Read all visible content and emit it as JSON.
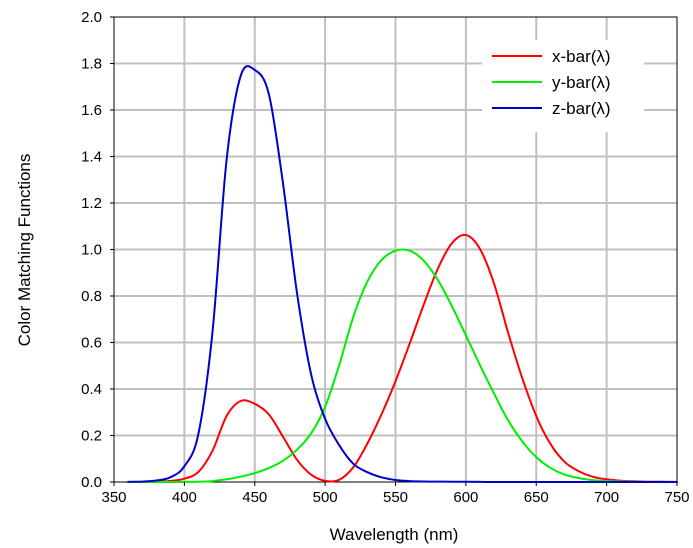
{
  "chart_data": {
    "type": "line",
    "title": "",
    "xlabel": "Wavelength (nm)",
    "ylabel": "Color Matching Functions",
    "xlim": [
      350,
      750
    ],
    "ylim": [
      0,
      2.0
    ],
    "grid": true,
    "legend_position": "top-right",
    "x_ticks": [
      "350",
      "400",
      "450",
      "500",
      "550",
      "600",
      "650",
      "700",
      "750"
    ],
    "y_ticks": [
      "0.0",
      "0.2",
      "0.4",
      "0.6",
      "0.8",
      "1.0",
      "1.2",
      "1.4",
      "1.6",
      "1.8",
      "2.0"
    ],
    "x": [
      360,
      370,
      380,
      390,
      400,
      410,
      420,
      430,
      440,
      450,
      460,
      470,
      480,
      490,
      500,
      510,
      520,
      530,
      540,
      550,
      560,
      570,
      580,
      590,
      600,
      610,
      620,
      630,
      640,
      650,
      660,
      670,
      680,
      690,
      700,
      710,
      720,
      730,
      740,
      750
    ],
    "series": [
      {
        "name": "x-bar(λ)",
        "color": "#ff0000",
        "values": [
          0.0001,
          0.0004,
          0.0014,
          0.0042,
          0.0143,
          0.0435,
          0.1344,
          0.2839,
          0.3483,
          0.3362,
          0.2908,
          0.1954,
          0.0956,
          0.032,
          0.0049,
          0.0093,
          0.0633,
          0.1655,
          0.2904,
          0.4334,
          0.5945,
          0.7621,
          0.9163,
          1.0263,
          1.0622,
          1.0026,
          0.8544,
          0.6424,
          0.4479,
          0.2835,
          0.1649,
          0.0874,
          0.0468,
          0.0227,
          0.0114,
          0.0058,
          0.0029,
          0.0014,
          0.0007,
          0.0003
        ]
      },
      {
        "name": "y-bar(λ)",
        "color": "#00ee00",
        "values": [
          0.0,
          0.0,
          0.0,
          0.0001,
          0.0004,
          0.0012,
          0.004,
          0.0116,
          0.023,
          0.038,
          0.06,
          0.091,
          0.139,
          0.208,
          0.323,
          0.503,
          0.71,
          0.862,
          0.954,
          0.995,
          0.995,
          0.952,
          0.87,
          0.757,
          0.631,
          0.503,
          0.381,
          0.265,
          0.175,
          0.107,
          0.061,
          0.032,
          0.017,
          0.0082,
          0.0041,
          0.0021,
          0.001,
          0.0005,
          0.0003,
          0.0001
        ]
      },
      {
        "name": "z-bar(λ)",
        "color": "#0000cc",
        "values": [
          0.0006,
          0.0019,
          0.0065,
          0.0201,
          0.0679,
          0.2074,
          0.6456,
          1.3856,
          1.7471,
          1.7721,
          1.6692,
          1.2876,
          0.813,
          0.4652,
          0.272,
          0.1582,
          0.0782,
          0.0422,
          0.0203,
          0.0087,
          0.0039,
          0.0021,
          0.0017,
          0.0011,
          0.0008,
          0.0003,
          0.0002,
          0.0,
          0.0,
          0.0,
          0.0,
          0.0,
          0.0,
          0.0,
          0.0,
          0.0,
          0.0,
          0.0,
          0.0,
          0.0
        ]
      }
    ]
  }
}
